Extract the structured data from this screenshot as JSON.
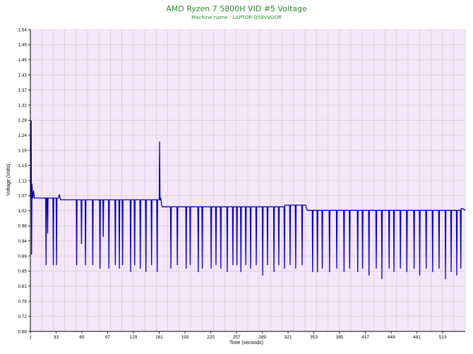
{
  "colors": {
    "plot_background": "#f5e6fa",
    "grid": "#c9c9c9",
    "series_line": "#0000b4",
    "title": "#2e8b2e",
    "axis": "#000000"
  },
  "chart_data": {
    "type": "line",
    "title": "AMD Ryzen 7 5800H VID #5 Voltage",
    "subtitle": "Machine name : LAPTOP-Q59VVOOR",
    "xlabel": "Time (seconds)",
    "ylabel": "Voltage (Volts)",
    "xlim": [
      1,
      541
    ],
    "ylim": [
      0.68,
      1.54
    ],
    "grid": true,
    "x_ticks": [
      "1",
      "33",
      "65",
      "97",
      "129",
      "161",
      "193",
      "225",
      "257",
      "289",
      "321",
      "353",
      "385",
      "417",
      "449",
      "481",
      "513"
    ],
    "y_ticks": [
      "0.68",
      "0.72",
      "0.76",
      "0.81",
      "0.85",
      "0.89",
      "0.94",
      "0.98",
      "1.02",
      "1.07",
      "1.11",
      "1.15",
      "1.19",
      "1.24",
      "1.28",
      "1.32",
      "1.37",
      "1.41",
      "1.45",
      "1.49",
      "1.54"
    ],
    "series": [
      {
        "values": [
          [
            1,
            1.06
          ],
          [
            2,
            1.28
          ],
          [
            2.5,
            0.9
          ],
          [
            3,
            1.1
          ],
          [
            4,
            1.06
          ],
          [
            5,
            1.08
          ],
          [
            6,
            1.06
          ],
          [
            20,
            1.06
          ],
          [
            20.5,
            0.87
          ],
          [
            21,
            1.06
          ],
          [
            22,
            1.06
          ],
          [
            22.5,
            0.96
          ],
          [
            23,
            1.06
          ],
          [
            29,
            1.06
          ],
          [
            29.5,
            0.87
          ],
          [
            30,
            1.06
          ],
          [
            33,
            1.06
          ],
          [
            33.5,
            0.87
          ],
          [
            34,
            1.06
          ],
          [
            36,
            1.06
          ],
          [
            37,
            1.07
          ],
          [
            38,
            1.06
          ],
          [
            38.5,
            1.055
          ],
          [
            39,
            1.055
          ],
          [
            58,
            1.055
          ],
          [
            58.5,
            0.87
          ],
          [
            59,
            1.055
          ],
          [
            64,
            1.055
          ],
          [
            64.5,
            0.93
          ],
          [
            65,
            1.055
          ],
          [
            69,
            1.055
          ],
          [
            69.5,
            0.87
          ],
          [
            70,
            1.055
          ],
          [
            78,
            1.055
          ],
          [
            78.5,
            0.87
          ],
          [
            79,
            1.055
          ],
          [
            87,
            1.055
          ],
          [
            87.5,
            0.86
          ],
          [
            88,
            1.055
          ],
          [
            91,
            1.055
          ],
          [
            91.5,
            0.95
          ],
          [
            92,
            1.055
          ],
          [
            98,
            1.055
          ],
          [
            98.5,
            0.86
          ],
          [
            99,
            1.055
          ],
          [
            106,
            1.055
          ],
          [
            106.5,
            0.87
          ],
          [
            107,
            1.055
          ],
          [
            111,
            1.055
          ],
          [
            111.5,
            0.86
          ],
          [
            112,
            1.055
          ],
          [
            115,
            1.055
          ],
          [
            115.5,
            0.87
          ],
          [
            116,
            1.055
          ],
          [
            125,
            1.055
          ],
          [
            125.5,
            0.85
          ],
          [
            126,
            1.055
          ],
          [
            130,
            1.055
          ],
          [
            130.5,
            0.87
          ],
          [
            131,
            1.055
          ],
          [
            137,
            1.055
          ],
          [
            137.5,
            0.86
          ],
          [
            138,
            1.055
          ],
          [
            144,
            1.055
          ],
          [
            144.5,
            0.85
          ],
          [
            145,
            1.055
          ],
          [
            151,
            1.055
          ],
          [
            151.5,
            0.87
          ],
          [
            152,
            1.055
          ],
          [
            158,
            1.055
          ],
          [
            158.5,
            0.85
          ],
          [
            159,
            1.055
          ],
          [
            161,
            1.055
          ],
          [
            161.5,
            1.22
          ],
          [
            162,
            1.055
          ],
          [
            163,
            1.06
          ],
          [
            164,
            1.04
          ],
          [
            165,
            1.035
          ],
          [
            175,
            1.035
          ],
          [
            175.5,
            0.86
          ],
          [
            176,
            1.035
          ],
          [
            183,
            1.035
          ],
          [
            183.5,
            0.87
          ],
          [
            184,
            1.035
          ],
          [
            194,
            1.035
          ],
          [
            194.5,
            0.86
          ],
          [
            195,
            1.035
          ],
          [
            199,
            1.035
          ],
          [
            199.5,
            0.87
          ],
          [
            200,
            1.035
          ],
          [
            209,
            1.035
          ],
          [
            209.5,
            0.85
          ],
          [
            210,
            1.035
          ],
          [
            214,
            1.035
          ],
          [
            214.5,
            0.86
          ],
          [
            215,
            1.035
          ],
          [
            225,
            1.035
          ],
          [
            225.5,
            0.86
          ],
          [
            226,
            1.035
          ],
          [
            231,
            1.035
          ],
          [
            231.5,
            0.87
          ],
          [
            232,
            1.035
          ],
          [
            237,
            1.035
          ],
          [
            237.5,
            0.86
          ],
          [
            238,
            1.035
          ],
          [
            245,
            1.035
          ],
          [
            245.5,
            0.85
          ],
          [
            246,
            1.035
          ],
          [
            252,
            1.035
          ],
          [
            252.5,
            0.87
          ],
          [
            253,
            1.035
          ],
          [
            257,
            1.035
          ],
          [
            257.5,
            0.87
          ],
          [
            258,
            1.035
          ],
          [
            262,
            1.035
          ],
          [
            262.5,
            0.85
          ],
          [
            263,
            1.035
          ],
          [
            268,
            1.035
          ],
          [
            268.5,
            0.87
          ],
          [
            269,
            1.035
          ],
          [
            274,
            1.035
          ],
          [
            274.5,
            0.86
          ],
          [
            275,
            1.035
          ],
          [
            281,
            1.035
          ],
          [
            281.5,
            0.87
          ],
          [
            282,
            1.035
          ],
          [
            289,
            1.035
          ],
          [
            289.5,
            0.84
          ],
          [
            290,
            1.035
          ],
          [
            295,
            1.035
          ],
          [
            295.5,
            0.87
          ],
          [
            296,
            1.035
          ],
          [
            303,
            1.035
          ],
          [
            303.5,
            0.85
          ],
          [
            304,
            1.035
          ],
          [
            309,
            1.035
          ],
          [
            309.5,
            0.87
          ],
          [
            310,
            1.035
          ],
          [
            316,
            1.035
          ],
          [
            316.5,
            0.86
          ],
          [
            317,
            1.04
          ],
          [
            323,
            1.04
          ],
          [
            323.5,
            0.87
          ],
          [
            324,
            1.04
          ],
          [
            330,
            1.04
          ],
          [
            330.5,
            0.86
          ],
          [
            331,
            1.04
          ],
          [
            338,
            1.04
          ],
          [
            338.5,
            0.87
          ],
          [
            339,
            1.04
          ],
          [
            343,
            1.04
          ],
          [
            344,
            1.03
          ],
          [
            345,
            1.025
          ],
          [
            351,
            1.025
          ],
          [
            351.5,
            0.85
          ],
          [
            352,
            1.025
          ],
          [
            357,
            1.025
          ],
          [
            357.5,
            0.85
          ],
          [
            358,
            1.025
          ],
          [
            363,
            1.025
          ],
          [
            363.5,
            0.86
          ],
          [
            364,
            1.025
          ],
          [
            372,
            1.025
          ],
          [
            372.5,
            0.85
          ],
          [
            373,
            1.025
          ],
          [
            381,
            1.025
          ],
          [
            381.5,
            0.86
          ],
          [
            382,
            1.025
          ],
          [
            390,
            1.025
          ],
          [
            390.5,
            0.85
          ],
          [
            391,
            1.025
          ],
          [
            397,
            1.025
          ],
          [
            397.5,
            0.86
          ],
          [
            398,
            1.025
          ],
          [
            407,
            1.025
          ],
          [
            407.5,
            0.85
          ],
          [
            408,
            1.025
          ],
          [
            413,
            1.025
          ],
          [
            413.5,
            0.86
          ],
          [
            414,
            1.025
          ],
          [
            421,
            1.025
          ],
          [
            421.5,
            0.84
          ],
          [
            422,
            1.025
          ],
          [
            430,
            1.025
          ],
          [
            430.5,
            0.86
          ],
          [
            431,
            1.025
          ],
          [
            437,
            1.025
          ],
          [
            437.5,
            0.83
          ],
          [
            438,
            1.025
          ],
          [
            446,
            1.025
          ],
          [
            446.5,
            0.86
          ],
          [
            447,
            1.025
          ],
          [
            452,
            1.025
          ],
          [
            452.5,
            0.85
          ],
          [
            453,
            1.025
          ],
          [
            460,
            1.025
          ],
          [
            460.5,
            0.86
          ],
          [
            461,
            1.025
          ],
          [
            468,
            1.025
          ],
          [
            468.5,
            0.85
          ],
          [
            469,
            1.025
          ],
          [
            477,
            1.025
          ],
          [
            477.5,
            0.86
          ],
          [
            478,
            1.025
          ],
          [
            484,
            1.025
          ],
          [
            484.5,
            0.84
          ],
          [
            485,
            1.025
          ],
          [
            492,
            1.025
          ],
          [
            492.5,
            0.86
          ],
          [
            493,
            1.025
          ],
          [
            500,
            1.025
          ],
          [
            500.5,
            0.85
          ],
          [
            501,
            1.025
          ],
          [
            508,
            1.025
          ],
          [
            508.5,
            0.86
          ],
          [
            509,
            1.025
          ],
          [
            516,
            1.025
          ],
          [
            516.5,
            0.83
          ],
          [
            517,
            1.025
          ],
          [
            523,
            1.025
          ],
          [
            523.5,
            0.85
          ],
          [
            524,
            1.025
          ],
          [
            530,
            1.025
          ],
          [
            530.5,
            0.84
          ],
          [
            531,
            1.025
          ],
          [
            535,
            1.025
          ],
          [
            535.5,
            0.86
          ],
          [
            536,
            1.03
          ],
          [
            538,
            1.03
          ],
          [
            541,
            1.025
          ]
        ]
      }
    ]
  }
}
